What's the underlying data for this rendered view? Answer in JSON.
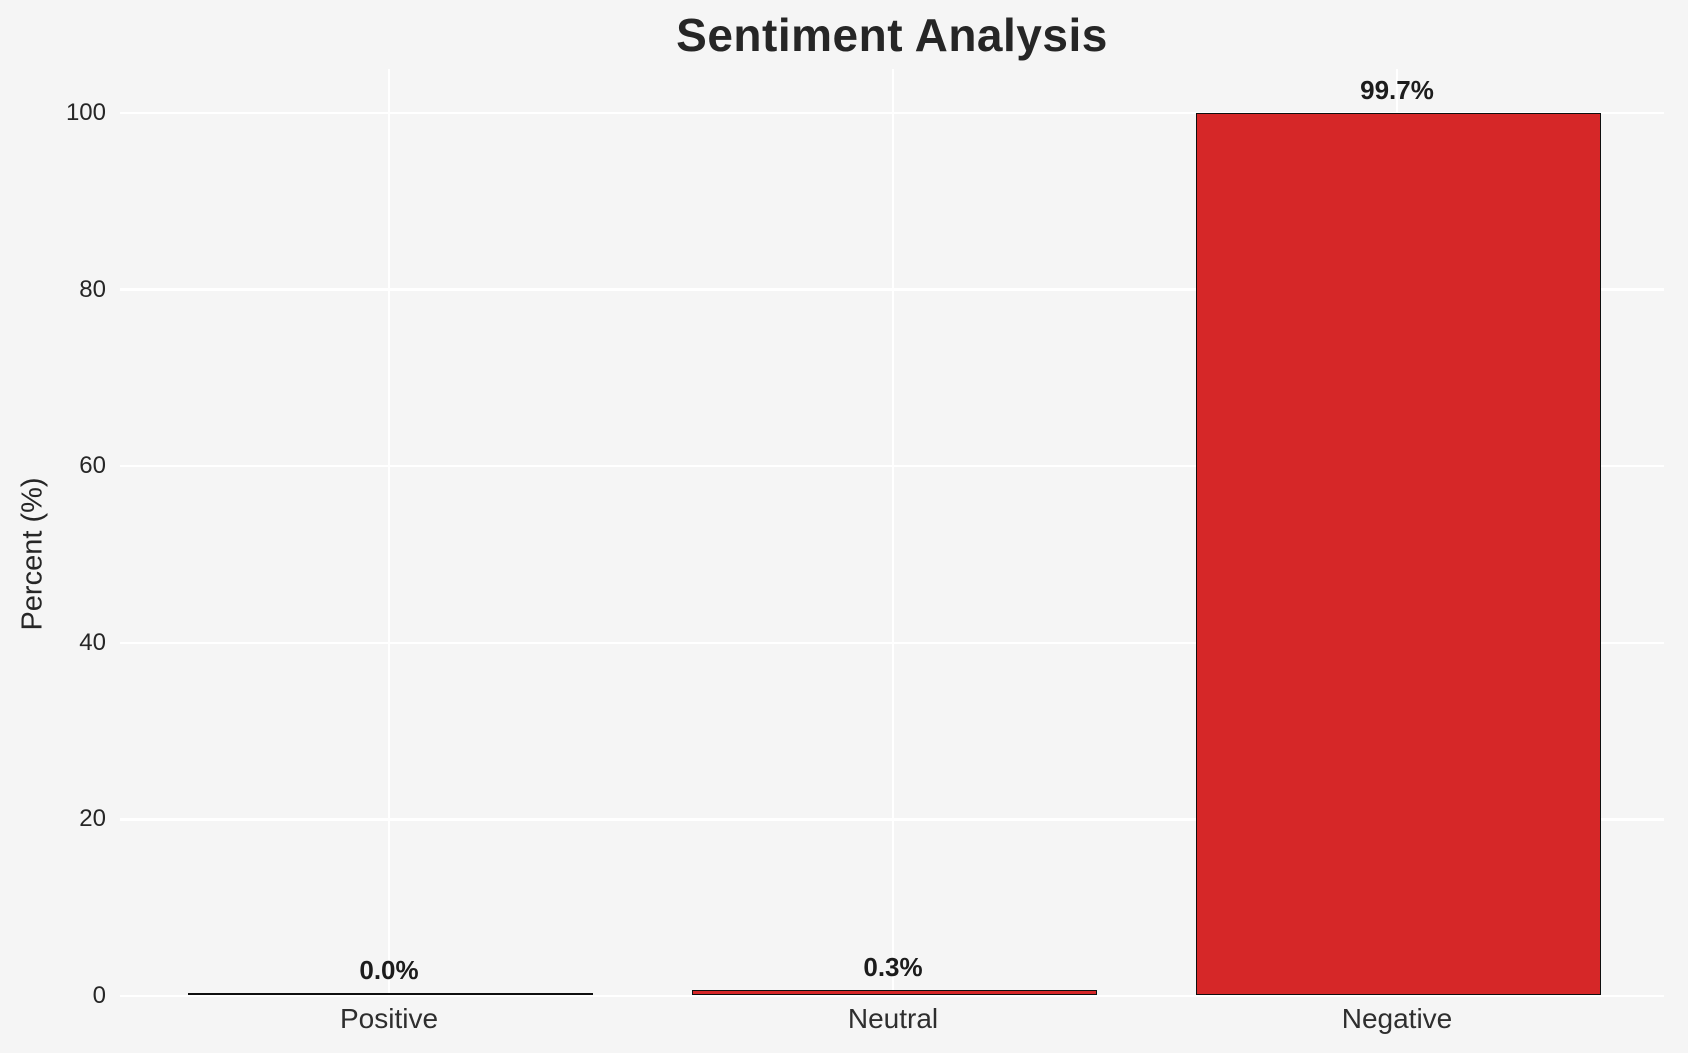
{
  "chart_data": {
    "type": "bar",
    "title": "Sentiment Analysis",
    "xlabel": "",
    "ylabel": "Percent (%)",
    "categories": [
      "Positive",
      "Neutral",
      "Negative"
    ],
    "values": [
      0.0,
      0.3,
      99.7
    ],
    "bar_labels": [
      "0.0%",
      "0.3%",
      "99.7%"
    ],
    "yticks": [
      "0",
      "20",
      "40",
      "60",
      "80",
      "100"
    ],
    "ytick_values": [
      0,
      20,
      40,
      60,
      80,
      100
    ],
    "ylim": [
      0,
      105
    ],
    "grid": true,
    "legend": null,
    "colors": {
      "background": "#f5f5f5",
      "grid": "#ffffff",
      "bar_fill": "#d62728",
      "bar_edge": "#0f0f0f",
      "text": "#262626"
    }
  }
}
